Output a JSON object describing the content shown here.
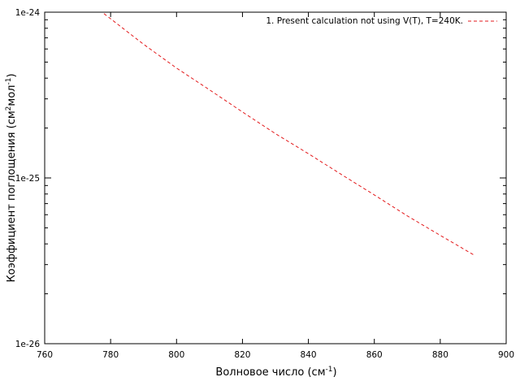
{
  "chart_data": {
    "type": "line",
    "xlabel": "Волновое число (см",
    "xlabel_sup": "-1",
    "xlabel_end": ")",
    "ylabel_parts": [
      "Коэффициент поглощения (см",
      "2",
      "мол",
      "-1",
      ")"
    ],
    "xlim": [
      760,
      900
    ],
    "ylim": [
      1e-26,
      1e-24
    ],
    "yscale": "log",
    "x_ticks": [
      760,
      780,
      800,
      820,
      840,
      860,
      880,
      900
    ],
    "y_ticks": [
      {
        "value": 1e-24,
        "label": "1e-24"
      },
      {
        "value": 1e-25,
        "label": "1e-25"
      },
      {
        "value": 1e-26,
        "label": "1e-26"
      }
    ],
    "grid": false,
    "legend_position": "top-right",
    "series": [
      {
        "name": "1. Present calculation not using V(T), T=240K.",
        "color": "#e31a1c",
        "dash": true,
        "x": [
          778,
          790,
          800,
          810,
          820,
          830,
          840,
          850,
          860,
          870,
          880,
          890
        ],
        "y": [
          9.8e-25,
          6.4e-25,
          4.6e-25,
          3.4e-25,
          2.5e-25,
          1.85e-25,
          1.4e-25,
          1.05e-25,
          7.9e-26,
          5.9e-26,
          4.5e-26,
          3.45e-26
        ]
      }
    ]
  }
}
